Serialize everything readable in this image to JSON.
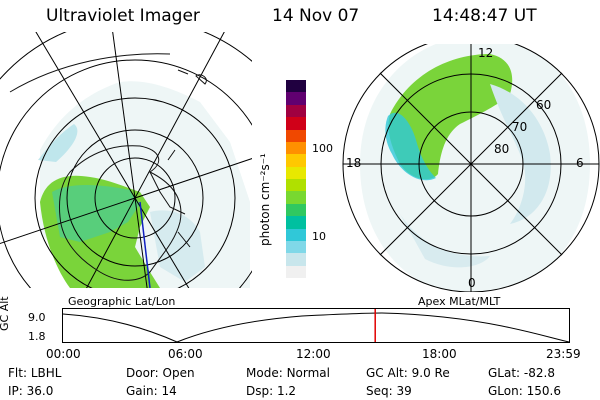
{
  "header": {
    "title": "Ultraviolet Imager",
    "date": "14 Nov 07",
    "time": "14:48:47 UT"
  },
  "left_panel": {
    "caption": "Geographic Lat/Lon"
  },
  "right_panel": {
    "caption": "Apex MLat/MLT",
    "lat_labels": [
      "60",
      "70",
      "80"
    ],
    "mlt_labels": [
      "12",
      "18",
      "6",
      "0"
    ]
  },
  "colorbar": {
    "label": "photon cm⁻²s⁻¹",
    "ticks": [
      "100",
      "10"
    ],
    "scale": "log",
    "colors": [
      "#f0f0f0",
      "#c8e6ec",
      "#80d8e8",
      "#30c8d8",
      "#00c0a0",
      "#30c860",
      "#78d830",
      "#b0e000",
      "#e8e800",
      "#ffc800",
      "#ff9000",
      "#f04800",
      "#d00018",
      "#a00040",
      "#600070",
      "#200040"
    ]
  },
  "timeline": {
    "axis_label": "GC Alt",
    "y_ticks": [
      "9.0",
      "1.8"
    ],
    "x_ticks": [
      "00:00",
      "06:00",
      "12:00",
      "18:00",
      "23:59"
    ],
    "current_time_fraction": 0.617,
    "marker_color": "#e00000"
  },
  "status": {
    "row1": [
      {
        "label": "Flt:",
        "value": "LBHL"
      },
      {
        "label": "Door:",
        "value": "Open"
      },
      {
        "label": "Mode:",
        "value": "Normal"
      },
      {
        "label": "GC Alt:",
        "value": "9.0 Re"
      },
      {
        "label": "GLat:",
        "value": "-82.8"
      }
    ],
    "row2": [
      {
        "label": "IP:",
        "value": "36.0"
      },
      {
        "label": "Gain:",
        "value": "14"
      },
      {
        "label": "Dsp:",
        "value": "1.2"
      },
      {
        "label": "Seq:",
        "value": "39"
      },
      {
        "label": "GLon:",
        "value": "150.6"
      }
    ]
  }
}
